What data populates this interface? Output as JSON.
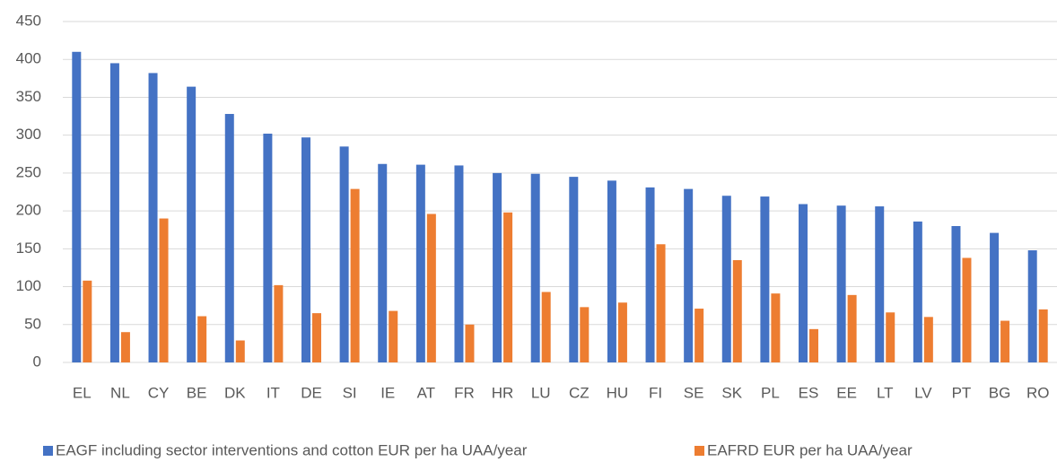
{
  "chart_data": {
    "type": "bar",
    "categories": [
      "EL",
      "NL",
      "CY",
      "BE",
      "DK",
      "IT",
      "DE",
      "SI",
      "IE",
      "AT",
      "FR",
      "HR",
      "LU",
      "CZ",
      "HU",
      "FI",
      "SE",
      "SK",
      "PL",
      "ES",
      "EE",
      "LT",
      "LV",
      "PT",
      "BG",
      "RO"
    ],
    "series": [
      {
        "name": "EAGF including sector interventions and cotton EUR per ha UAA/year",
        "color": "#4472c4",
        "values": [
          410,
          395,
          382,
          364,
          328,
          302,
          297,
          285,
          262,
          261,
          260,
          250,
          249,
          245,
          240,
          231,
          229,
          220,
          219,
          209,
          207,
          206,
          186,
          180,
          171,
          148
        ]
      },
      {
        "name": "EAFRD EUR per ha UAA/year",
        "color": "#ed7d31",
        "values": [
          108,
          40,
          190,
          61,
          29,
          102,
          65,
          229,
          68,
          196,
          50,
          198,
          93,
          73,
          79,
          156,
          71,
          135,
          91,
          44,
          89,
          66,
          60,
          138,
          55,
          70
        ]
      }
    ],
    "ylim": [
      0,
      450
    ],
    "yticks": [
      0,
      50,
      100,
      150,
      200,
      250,
      300,
      350,
      400,
      450
    ],
    "grid": true,
    "legend": "bottom"
  }
}
